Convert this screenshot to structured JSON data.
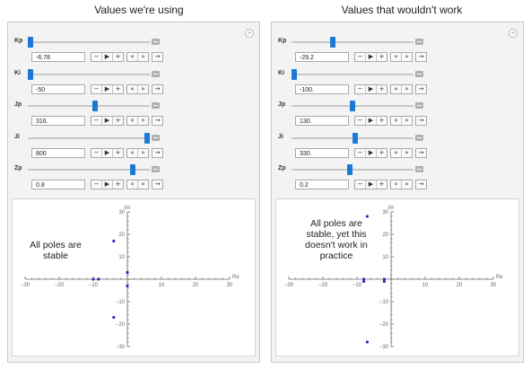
{
  "titles": {
    "left": "Values we're using",
    "right": "Values that wouldn't work"
  },
  "controls": {
    "minus": "−",
    "play": "▶",
    "plus": "+",
    "faster": "«",
    "slower": "»",
    "forward": "→"
  },
  "panels": [
    {
      "sliders": [
        {
          "name": "Kp",
          "value_text": "-6.78",
          "position": 0.0
        },
        {
          "name": "Ki",
          "value_text": "-50",
          "position": 0.0
        },
        {
          "name": "Jp",
          "value_text": "316.",
          "position": 0.55
        },
        {
          "name": "Ji",
          "value_text": "800",
          "position": 1.0
        },
        {
          "name": "Zp",
          "value_text": "0.8",
          "position": 0.88
        }
      ],
      "annotation": [
        "All poles are",
        "stable"
      ],
      "plot": {
        "xlabel": "Re",
        "ylabel": "Im",
        "xlim": [
          -30,
          30
        ],
        "ylim": [
          -30,
          30
        ],
        "xticks": [
          -30,
          -20,
          -10,
          10,
          20,
          30
        ],
        "yticks": [
          -30,
          -20,
          -10,
          10,
          20,
          30
        ],
        "points": [
          [
            -4,
            17
          ],
          [
            -4,
            -17
          ],
          [
            -10,
            0
          ],
          [
            -8.5,
            0
          ],
          [
            0,
            3
          ],
          [
            0,
            -3
          ]
        ]
      }
    },
    {
      "sliders": [
        {
          "name": "Kp",
          "value_text": "-29.2",
          "position": 0.33
        },
        {
          "name": "Ki",
          "value_text": "-100.",
          "position": 0.0
        },
        {
          "name": "Jp",
          "value_text": "130.",
          "position": 0.5
        },
        {
          "name": "Ji",
          "value_text": "330.",
          "position": 0.52
        },
        {
          "name": "Zp",
          "value_text": "0.2",
          "position": 0.48
        }
      ],
      "annotation": [
        "All poles are",
        "stable, yet this",
        "doesn't work in",
        "practice"
      ],
      "plot": {
        "xlabel": "Re",
        "ylabel": "Im",
        "xlim": [
          -30,
          30
        ],
        "ylim": [
          -30,
          30
        ],
        "xticks": [
          -30,
          -20,
          -10,
          10,
          20,
          30
        ],
        "yticks": [
          -30,
          -20,
          -10,
          10,
          20,
          30
        ],
        "points": [
          [
            -7,
            28
          ],
          [
            -7,
            -28
          ],
          [
            -8,
            0
          ],
          [
            -8,
            -1
          ],
          [
            -2,
            0
          ],
          [
            -2,
            -1
          ]
        ]
      }
    }
  ]
}
